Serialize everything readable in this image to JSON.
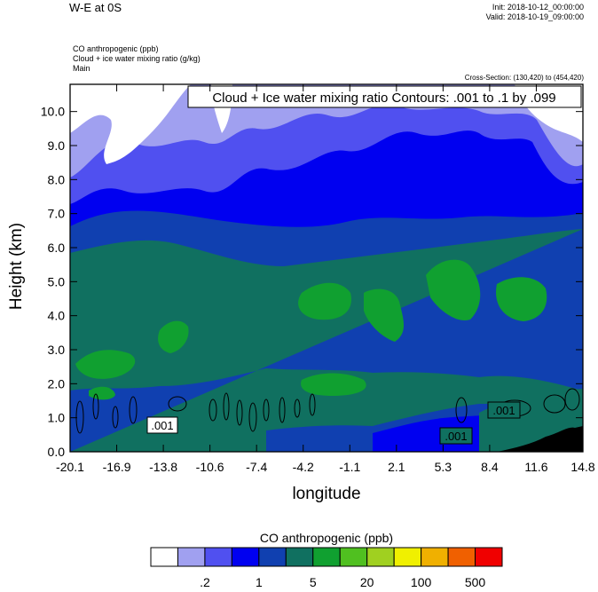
{
  "header": {
    "title": "W-E at 0S",
    "init": "Init: 2018-10-12_00:00:00",
    "valid": "Valid: 2018-10-19_09:00:00",
    "field1": "CO anthropogenic   (ppb)",
    "field2": "Cloud + ice water mixing ratio   (g/kg)",
    "field3": "Main",
    "cross_section": "Cross-Section: (130,420) to (454,420)"
  },
  "contour_label": "Cloud + Ice water mixing ratio Contours: .001 to .1 by .099",
  "contour_tags": [
    ".001",
    ".001",
    ".001"
  ],
  "chart_data": {
    "type": "heatmap",
    "title": "W-E at 0S",
    "xlabel": "longitude",
    "ylabel": "Height (km)",
    "xlim": [
      -20.1,
      14.8
    ],
    "ylim": [
      0.0,
      10.8
    ],
    "x_tick_labels": [
      "-20.1",
      "-16.9",
      "-13.8",
      "-10.6",
      "-7.4",
      "-4.2",
      "-1.1",
      "2.1",
      "5.3",
      "8.4",
      "11.6",
      "14.8"
    ],
    "y_tick_labels": [
      "0.0",
      "1.0",
      "2.0",
      "3.0",
      "4.0",
      "5.0",
      "6.0",
      "7.0",
      "8.0",
      "9.0",
      "10.0"
    ],
    "colorbar": {
      "title": "CO anthropogenic  (ppb)",
      "labels": [
        ".2",
        "1",
        "5",
        "20",
        "100",
        "500"
      ],
      "colors": [
        "#ffffff",
        "#a0a0f0",
        "#5050f0",
        "#0000f0",
        "#1040b0",
        "#107060",
        "#10a030",
        "#50c020",
        "#a0d020",
        "#f0f000",
        "#f0b000",
        "#f06000",
        "#f00000"
      ]
    },
    "contour_levels": [
      0.001,
      0.1
    ],
    "contour_interval": 0.099,
    "grid": false
  }
}
